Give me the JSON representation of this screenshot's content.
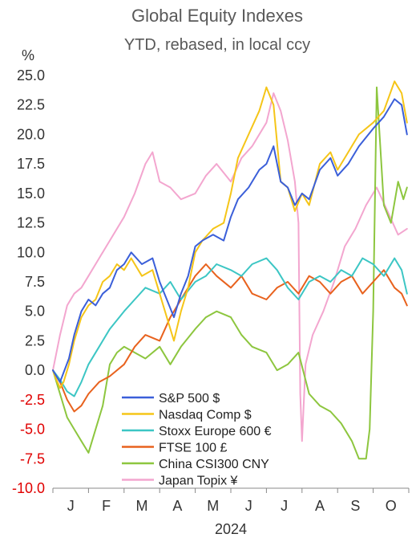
{
  "chart_data": {
    "type": "line",
    "title": "Global Equity Indexes",
    "subtitle": "YTD, rebased, in local ccy",
    "ylabel": "%",
    "xlabel": "2024",
    "ylim": [
      -10,
      25
    ],
    "yticks": [
      25.0,
      22.5,
      20.0,
      17.5,
      15.0,
      12.5,
      10.0,
      7.5,
      5.0,
      2.5,
      0.0,
      -2.5,
      -5.0,
      -7.5,
      -10.0
    ],
    "ytick_labels": [
      "25.0",
      "22.5",
      "20.0",
      "17.5",
      "15.0",
      "12.5",
      "10.0",
      "7.5",
      "5.0",
      "2.5",
      "0.0",
      "-2.5",
      "-5.0",
      "-7.5",
      "-10.0"
    ],
    "negative_tick_color": "#e00000",
    "positive_tick_color": "#333333",
    "xlim": [
      0,
      10
    ],
    "month_labels": [
      "J",
      "F",
      "M",
      "A",
      "M",
      "J",
      "J",
      "A",
      "S",
      "O"
    ],
    "grid": false,
    "legend_position": "lower-center",
    "series": [
      {
        "name": "S&P 500 $",
        "color": "#3b5fd9",
        "x": [
          0,
          0.1,
          0.2,
          0.3,
          0.45,
          0.6,
          0.8,
          1.0,
          1.2,
          1.4,
          1.6,
          1.8,
          2.0,
          2.2,
          2.5,
          2.8,
          3.0,
          3.2,
          3.4,
          3.6,
          3.8,
          4.0,
          4.2,
          4.5,
          4.8,
          5.0,
          5.2,
          5.5,
          5.8,
          6.0,
          6.2,
          6.4,
          6.6,
          6.8,
          7.0,
          7.2,
          7.5,
          7.8,
          8.0,
          8.3,
          8.6,
          9.0,
          9.3,
          9.6,
          9.8,
          9.95
        ],
        "values": [
          0.0,
          -0.5,
          -1.0,
          -0.2,
          1.0,
          3.0,
          5.0,
          6.0,
          5.5,
          6.5,
          7.0,
          8.5,
          9.0,
          10.0,
          9.0,
          9.5,
          7.5,
          6.0,
          4.5,
          6.5,
          8.0,
          10.5,
          11.0,
          11.5,
          11.0,
          13.0,
          14.5,
          15.5,
          17.0,
          17.5,
          19.0,
          16.0,
          15.5,
          14.0,
          15.0,
          14.5,
          17.0,
          18.0,
          16.5,
          17.5,
          19.0,
          20.5,
          21.5,
          23.0,
          22.5,
          20.0
        ]
      },
      {
        "name": "Nasdaq Comp $",
        "color": "#f5c518",
        "x": [
          0,
          0.1,
          0.2,
          0.3,
          0.45,
          0.6,
          0.8,
          1.0,
          1.2,
          1.4,
          1.6,
          1.8,
          2.0,
          2.2,
          2.5,
          2.8,
          3.0,
          3.2,
          3.4,
          3.6,
          3.8,
          4.0,
          4.2,
          4.5,
          4.8,
          5.0,
          5.2,
          5.5,
          5.8,
          6.0,
          6.2,
          6.4,
          6.6,
          6.8,
          7.0,
          7.2,
          7.5,
          7.8,
          8.0,
          8.3,
          8.6,
          9.0,
          9.3,
          9.6,
          9.8,
          9.95
        ],
        "values": [
          0.0,
          -0.8,
          -1.5,
          -1.0,
          0.5,
          2.5,
          4.5,
          5.5,
          6.0,
          7.5,
          8.0,
          9.0,
          8.5,
          9.5,
          8.0,
          8.5,
          6.5,
          4.5,
          2.5,
          5.0,
          7.0,
          10.0,
          11.0,
          12.0,
          12.5,
          15.0,
          18.0,
          20.0,
          22.0,
          24.0,
          22.5,
          16.0,
          15.5,
          13.5,
          15.0,
          14.0,
          17.5,
          18.5,
          17.0,
          18.5,
          20.0,
          21.0,
          22.0,
          24.5,
          23.5,
          21.0
        ]
      },
      {
        "name": "Stoxx Europe 600 €",
        "color": "#3cc6c4",
        "x": [
          0,
          0.2,
          0.4,
          0.6,
          0.8,
          1.0,
          1.3,
          1.6,
          2.0,
          2.3,
          2.6,
          3.0,
          3.3,
          3.6,
          4.0,
          4.3,
          4.6,
          5.0,
          5.3,
          5.6,
          6.0,
          6.3,
          6.6,
          6.9,
          7.2,
          7.5,
          7.8,
          8.1,
          8.4,
          8.7,
          9.0,
          9.3,
          9.6,
          9.8,
          9.95
        ],
        "values": [
          0.0,
          -0.8,
          -1.8,
          -2.2,
          -1.0,
          0.5,
          2.0,
          3.5,
          5.0,
          6.0,
          7.0,
          6.5,
          7.5,
          6.0,
          7.5,
          8.0,
          9.0,
          8.5,
          8.0,
          9.0,
          9.5,
          8.5,
          7.0,
          6.0,
          7.5,
          8.0,
          7.5,
          8.5,
          8.0,
          9.5,
          9.0,
          8.0,
          9.5,
          8.5,
          6.5
        ]
      },
      {
        "name": "FTSE 100 £",
        "color": "#e8621e",
        "x": [
          0,
          0.2,
          0.4,
          0.6,
          0.8,
          1.0,
          1.3,
          1.6,
          2.0,
          2.3,
          2.6,
          3.0,
          3.3,
          3.6,
          4.0,
          4.3,
          4.6,
          5.0,
          5.3,
          5.6,
          6.0,
          6.3,
          6.6,
          6.9,
          7.2,
          7.5,
          7.8,
          8.1,
          8.4,
          8.7,
          9.0,
          9.3,
          9.6,
          9.8,
          9.95
        ],
        "values": [
          0.0,
          -1.0,
          -2.5,
          -3.5,
          -3.0,
          -2.0,
          -1.0,
          -0.5,
          0.5,
          2.0,
          3.0,
          2.5,
          4.5,
          6.0,
          8.0,
          9.0,
          8.0,
          7.0,
          8.0,
          6.5,
          6.0,
          7.0,
          7.5,
          6.5,
          8.0,
          7.5,
          6.5,
          7.5,
          8.0,
          6.5,
          7.5,
          8.5,
          7.0,
          6.5,
          5.5
        ]
      },
      {
        "name": "China CSI300 CNY",
        "color": "#8dc63f",
        "x": [
          0,
          0.2,
          0.4,
          0.6,
          0.8,
          1.0,
          1.2,
          1.4,
          1.6,
          1.8,
          2.0,
          2.3,
          2.6,
          3.0,
          3.3,
          3.6,
          4.0,
          4.3,
          4.6,
          5.0,
          5.3,
          5.6,
          6.0,
          6.3,
          6.6,
          6.9,
          7.2,
          7.5,
          7.8,
          8.1,
          8.4,
          8.6,
          8.8,
          8.9,
          9.0,
          9.1,
          9.3,
          9.5,
          9.7,
          9.85,
          9.95
        ],
        "values": [
          0.0,
          -2.0,
          -4.0,
          -5.0,
          -6.0,
          -7.0,
          -5.0,
          -3.0,
          0.5,
          1.5,
          2.0,
          1.5,
          1.0,
          2.0,
          0.5,
          2.0,
          3.5,
          4.5,
          5.0,
          4.5,
          3.0,
          2.0,
          1.5,
          0.0,
          0.5,
          1.5,
          -2.0,
          -3.0,
          -3.5,
          -4.5,
          -6.0,
          -7.5,
          -7.5,
          -5.0,
          5.0,
          24.0,
          14.0,
          12.5,
          16.0,
          14.5,
          15.5
        ]
      },
      {
        "name": "Japan Topix ¥",
        "color": "#f3a6cf",
        "x": [
          0,
          0.2,
          0.4,
          0.6,
          0.8,
          1.0,
          1.3,
          1.6,
          2.0,
          2.3,
          2.6,
          2.8,
          3.0,
          3.3,
          3.6,
          4.0,
          4.3,
          4.6,
          5.0,
          5.3,
          5.6,
          6.0,
          6.2,
          6.4,
          6.6,
          6.8,
          6.9,
          6.95,
          7.0,
          7.1,
          7.3,
          7.6,
          7.9,
          8.2,
          8.5,
          8.8,
          9.1,
          9.4,
          9.7,
          9.95
        ],
        "values": [
          0.0,
          3.0,
          5.5,
          6.5,
          7.0,
          8.0,
          9.5,
          11.0,
          13.0,
          15.0,
          17.5,
          18.5,
          16.0,
          15.5,
          14.5,
          15.0,
          16.5,
          17.5,
          16.0,
          18.0,
          19.0,
          21.0,
          23.5,
          22.0,
          19.5,
          16.0,
          12.5,
          -2.0,
          -6.0,
          0.5,
          3.0,
          5.0,
          7.5,
          10.5,
          12.0,
          14.0,
          15.5,
          13.5,
          11.5,
          12.0
        ]
      }
    ]
  }
}
